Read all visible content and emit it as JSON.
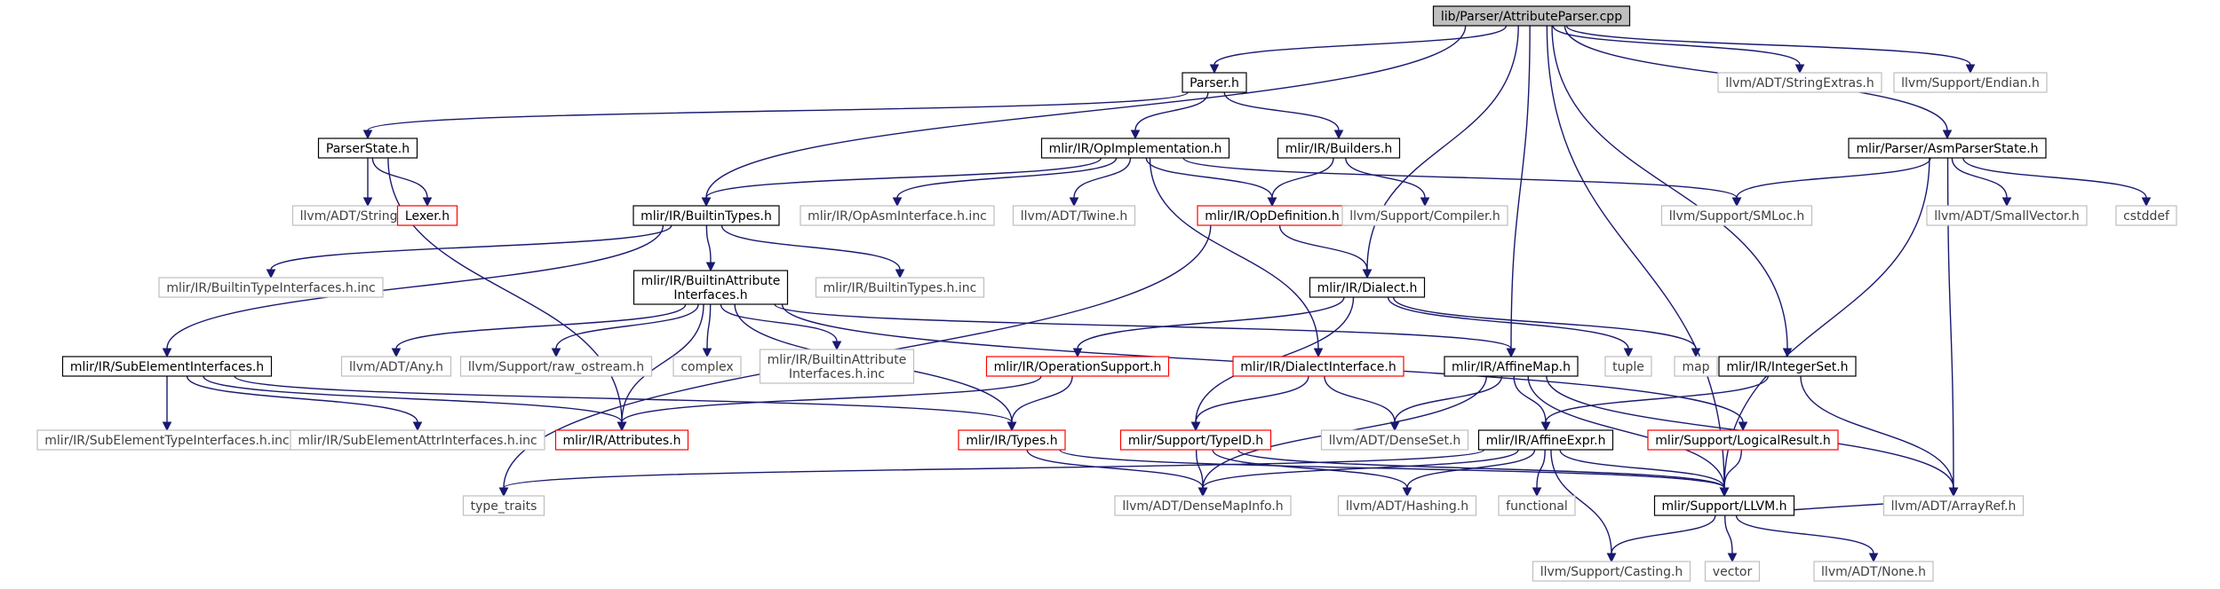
{
  "graph": {
    "root": "lib/Parser/AttributeParser.cpp",
    "nodes": [
      {
        "id": "root",
        "label": "lib/Parser/AttributeParser.cpp",
        "style": "root"
      },
      {
        "id": "parser_h",
        "label": "Parser.h",
        "style": "normal"
      },
      {
        "id": "stringextras",
        "label": "llvm/ADT/StringExtras.h",
        "style": "external"
      },
      {
        "id": "endian",
        "label": "llvm/Support/Endian.h",
        "style": "external"
      },
      {
        "id": "parserstate",
        "label": "ParserState.h",
        "style": "normal"
      },
      {
        "id": "opimpl",
        "label": "mlir/IR/OpImplementation.h",
        "style": "normal"
      },
      {
        "id": "builders",
        "label": "mlir/IR/Builders.h",
        "style": "normal"
      },
      {
        "id": "asmparserstate",
        "label": "mlir/Parser/AsmParserState.h",
        "style": "normal"
      },
      {
        "id": "stringmap",
        "label": "llvm/ADT/StringMap.h",
        "style": "external"
      },
      {
        "id": "lexer",
        "label": "Lexer.h",
        "style": "truncated"
      },
      {
        "id": "builtintypes",
        "label": "mlir/IR/BuiltinTypes.h",
        "style": "normal"
      },
      {
        "id": "opasminterface",
        "label": "mlir/IR/OpAsmInterface.h.inc",
        "style": "external"
      },
      {
        "id": "twine",
        "label": "llvm/ADT/Twine.h",
        "style": "external"
      },
      {
        "id": "opdefinition",
        "label": "mlir/IR/OpDefinition.h",
        "style": "truncated"
      },
      {
        "id": "compiler",
        "label": "llvm/Support/Compiler.h",
        "style": "external"
      },
      {
        "id": "smloc",
        "label": "llvm/Support/SMLoc.h",
        "style": "external"
      },
      {
        "id": "smallvector",
        "label": "llvm/ADT/SmallVector.h",
        "style": "external"
      },
      {
        "id": "cstddef",
        "label": "cstddef",
        "style": "external"
      },
      {
        "id": "builtintypeinterfaces",
        "label": "mlir/IR/BuiltinTypeInterfaces.h.inc",
        "style": "external"
      },
      {
        "id": "builtintypesinc",
        "label": "mlir/IR/BuiltinTypes.h.inc",
        "style": "external"
      },
      {
        "id": "builtinattrinterfaces",
        "label": [
          "mlir/IR/BuiltinAttribute",
          "Interfaces.h"
        ],
        "style": "normal"
      },
      {
        "id": "dialect",
        "label": "mlir/IR/Dialect.h",
        "style": "normal"
      },
      {
        "id": "subelement",
        "label": "mlir/IR/SubElementInterfaces.h",
        "style": "normal"
      },
      {
        "id": "any",
        "label": "llvm/ADT/Any.h",
        "style": "external"
      },
      {
        "id": "rawostream",
        "label": "llvm/Support/raw_ostream.h",
        "style": "external"
      },
      {
        "id": "complex",
        "label": "complex",
        "style": "external"
      },
      {
        "id": "builtinattrinc",
        "label": [
          "mlir/IR/BuiltinAttribute",
          "Interfaces.h.inc"
        ],
        "style": "external"
      },
      {
        "id": "opsupport",
        "label": "mlir/IR/OperationSupport.h",
        "style": "truncated"
      },
      {
        "id": "dialectinterface",
        "label": "mlir/IR/DialectInterface.h",
        "style": "truncated"
      },
      {
        "id": "affinemap",
        "label": "mlir/IR/AffineMap.h",
        "style": "normal"
      },
      {
        "id": "tuple",
        "label": "tuple",
        "style": "external"
      },
      {
        "id": "map",
        "label": "map",
        "style": "external"
      },
      {
        "id": "integerset",
        "label": "mlir/IR/IntegerSet.h",
        "style": "normal"
      },
      {
        "id": "subelementtype",
        "label": "mlir/IR/SubElementTypeInterfaces.h.inc",
        "style": "external"
      },
      {
        "id": "subelementattr",
        "label": "mlir/IR/SubElementAttrInterfaces.h.inc",
        "style": "external"
      },
      {
        "id": "attributes",
        "label": "mlir/IR/Attributes.h",
        "style": "truncated"
      },
      {
        "id": "types",
        "label": "mlir/IR/Types.h",
        "style": "truncated"
      },
      {
        "id": "typeid",
        "label": "mlir/Support/TypeID.h",
        "style": "truncated"
      },
      {
        "id": "densesett",
        "label": "llvm/ADT/DenseSet.h",
        "style": "external"
      },
      {
        "id": "affineexpr",
        "label": "mlir/IR/AffineExpr.h",
        "style": "normal"
      },
      {
        "id": "logicalresult",
        "label": "mlir/Support/LogicalResult.h",
        "style": "truncated"
      },
      {
        "id": "typetraits",
        "label": "type_traits",
        "style": "external"
      },
      {
        "id": "densemapinfo",
        "label": "llvm/ADT/DenseMapInfo.h",
        "style": "external"
      },
      {
        "id": "hashing",
        "label": "llvm/ADT/Hashing.h",
        "style": "external"
      },
      {
        "id": "functional",
        "label": "functional",
        "style": "external"
      },
      {
        "id": "llvmh",
        "label": "mlir/Support/LLVM.h",
        "style": "normal"
      },
      {
        "id": "arrayref",
        "label": "llvm/ADT/ArrayRef.h",
        "style": "external"
      },
      {
        "id": "casting",
        "label": "llvm/Support/Casting.h",
        "style": "external"
      },
      {
        "id": "vector",
        "label": "vector",
        "style": "external"
      },
      {
        "id": "none",
        "label": "llvm/ADT/None.h",
        "style": "external"
      }
    ],
    "edges": [
      [
        "root",
        "parser_h"
      ],
      [
        "root",
        "stringextras"
      ],
      [
        "root",
        "endian"
      ],
      [
        "root",
        "asmparserstate"
      ],
      [
        "root",
        "builtintypes"
      ],
      [
        "root",
        "dialect"
      ],
      [
        "root",
        "affinemap"
      ],
      [
        "root",
        "integerset"
      ],
      [
        "root",
        "llvmh"
      ],
      [
        "parser_h",
        "parserstate"
      ],
      [
        "parser_h",
        "opimpl"
      ],
      [
        "parser_h",
        "builders"
      ],
      [
        "parserstate",
        "stringmap"
      ],
      [
        "parserstate",
        "lexer"
      ],
      [
        "parserstate",
        "attributes"
      ],
      [
        "opimpl",
        "builtintypes"
      ],
      [
        "opimpl",
        "opasminterface"
      ],
      [
        "opimpl",
        "twine"
      ],
      [
        "opimpl",
        "opdefinition"
      ],
      [
        "opimpl",
        "smloc"
      ],
      [
        "opimpl",
        "dialectinterface"
      ],
      [
        "builders",
        "opdefinition"
      ],
      [
        "builders",
        "compiler"
      ],
      [
        "asmparserstate",
        "smloc"
      ],
      [
        "asmparserstate",
        "smallvector"
      ],
      [
        "asmparserstate",
        "cstddef"
      ],
      [
        "asmparserstate",
        "arrayref"
      ],
      [
        "asmparserstate",
        "llvmh"
      ],
      [
        "builtintypes",
        "builtintypeinterfaces"
      ],
      [
        "builtintypes",
        "builtintypesinc"
      ],
      [
        "builtintypes",
        "builtinattrinterfaces"
      ],
      [
        "builtintypes",
        "subelement"
      ],
      [
        "opdefinition",
        "dialect"
      ],
      [
        "opdefinition",
        "typetraits"
      ],
      [
        "builtinattrinterfaces",
        "any"
      ],
      [
        "builtinattrinterfaces",
        "rawostream"
      ],
      [
        "builtinattrinterfaces",
        "complex"
      ],
      [
        "builtinattrinterfaces",
        "builtinattrinc"
      ],
      [
        "builtinattrinterfaces",
        "affinemap"
      ],
      [
        "builtinattrinterfaces",
        "types"
      ],
      [
        "builtinattrinterfaces",
        "attributes"
      ],
      [
        "builtinattrinterfaces",
        "logicalresult"
      ],
      [
        "dialect",
        "opsupport"
      ],
      [
        "dialect",
        "tuple"
      ],
      [
        "dialect",
        "map"
      ],
      [
        "dialect",
        "typeid"
      ],
      [
        "subelement",
        "subelementtype"
      ],
      [
        "subelement",
        "subelementattr"
      ],
      [
        "subelement",
        "attributes"
      ],
      [
        "subelement",
        "types"
      ],
      [
        "opsupport",
        "attributes"
      ],
      [
        "opsupport",
        "types"
      ],
      [
        "dialectinterface",
        "typeid"
      ],
      [
        "dialectinterface",
        "densesett"
      ],
      [
        "affinemap",
        "affineexpr"
      ],
      [
        "affinemap",
        "densesett"
      ],
      [
        "affinemap",
        "arrayref"
      ],
      [
        "affinemap",
        "densemapinfo"
      ],
      [
        "affinemap",
        "llvmh"
      ],
      [
        "integerset",
        "affineexpr"
      ],
      [
        "integerset",
        "arrayref"
      ],
      [
        "types",
        "densemapinfo"
      ],
      [
        "types",
        "llvmh"
      ],
      [
        "typeid",
        "densemapinfo"
      ],
      [
        "typeid",
        "hashing"
      ],
      [
        "typeid",
        "llvmh"
      ],
      [
        "affineexpr",
        "typetraits"
      ],
      [
        "affineexpr",
        "densemapinfo"
      ],
      [
        "affineexpr",
        "hashing"
      ],
      [
        "affineexpr",
        "functional"
      ],
      [
        "affineexpr",
        "casting"
      ],
      [
        "affineexpr",
        "llvmh"
      ],
      [
        "logicalresult",
        "llvmh"
      ],
      [
        "llvmh",
        "arrayref"
      ],
      [
        "llvmh",
        "casting"
      ],
      [
        "llvmh",
        "vector"
      ],
      [
        "llvmh",
        "none"
      ]
    ]
  },
  "colors": {
    "edge": "#191970",
    "normal_border": "#000000",
    "truncated_border": "#ff0000",
    "external_border": "#bfbfbf",
    "root_fill": "#bfbfbf",
    "text": "#000000",
    "external_text": "#404040"
  }
}
